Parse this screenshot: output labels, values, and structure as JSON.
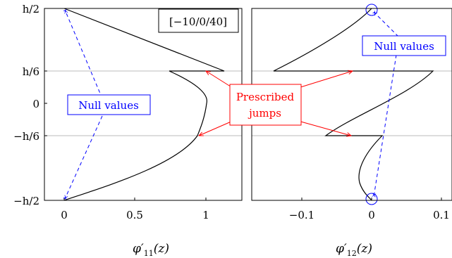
{
  "chart_data": [
    {
      "type": "line",
      "title": "",
      "xlabel": "φ'11(z)",
      "ylabel": "",
      "xlim": [
        -0.1,
        1.25
      ],
      "ylim": [
        -0.5,
        0.5
      ],
      "x_ticks": [
        "0",
        "0.5",
        "1"
      ],
      "y_ticks": [
        "h/2",
        "h/6",
        "0",
        "−h/6",
        "−h/2"
      ],
      "y_tick_values": [
        0.5,
        0.1667,
        0,
        -0.1667,
        -0.5
      ],
      "grid": "horizontal at ±h/6",
      "legend": "[−10/0/40]",
      "series": [
        {
          "x": [
            0,
            1.13,
            0.75,
            1.0,
            0.94,
            0
          ],
          "y": [
            0.5,
            0.1667,
            0.1667,
            0,
            -0.1667,
            -0.5
          ],
          "color": "#000000"
        }
      ],
      "jumps_at": [
        0.1667,
        -0.1667
      ],
      "null_values": {
        "x": [
          0,
          0
        ],
        "y": [
          0.5,
          -0.5
        ]
      }
    },
    {
      "type": "line",
      "title": "",
      "xlabel": "φ'12(z)",
      "ylabel": "",
      "xlim": [
        -0.17,
        0.1
      ],
      "ylim": [
        -0.5,
        0.5
      ],
      "x_ticks": [
        "−0.1",
        "0",
        "0.1"
      ],
      "grid": "horizontal at ±h/6",
      "series": [
        {
          "x": [
            0,
            -0.147,
            0.088,
            -0.065,
            0.015,
            0
          ],
          "y": [
            0.5,
            0.1667,
            0.1667,
            -0.1667,
            -0.1667,
            -0.5
          ],
          "color": "#000000"
        }
      ],
      "jumps_at": [
        0.1667,
        -0.1667
      ],
      "null_values": {
        "x": [
          0,
          0
        ],
        "y": [
          0.5,
          -0.5
        ]
      }
    }
  ],
  "annotations": {
    "null_values_label": "Null values",
    "jumps_label_line1": "Prescribed",
    "jumps_label_line2": "jumps",
    "null_color": "#0000ff",
    "jump_color": "#ff0000"
  },
  "axis_labels": {
    "left_x_main": "φ′",
    "left_x_sub": "11",
    "left_x_tail": "(z)",
    "right_x_main": "φ′",
    "right_x_sub": "12",
    "right_x_tail": "(z)"
  }
}
